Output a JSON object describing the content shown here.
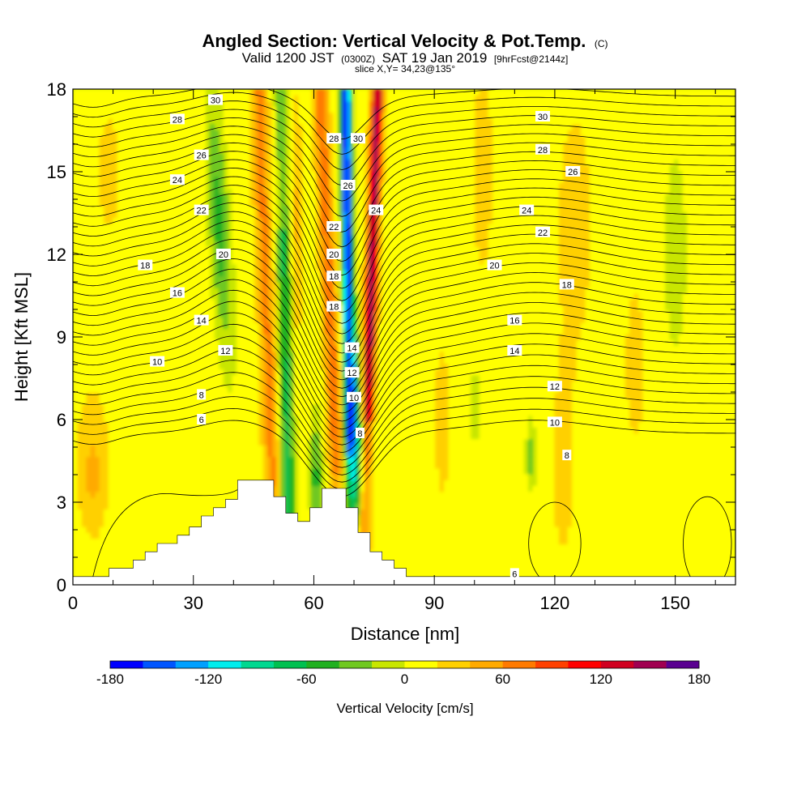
{
  "chart_data": {
    "type": "heatmap",
    "title": "Angled Section: Vertical Velocity & Pot.Temp.",
    "title_mark": "(C)",
    "subtitle": {
      "valid_label": "Valid 1200 JST",
      "utc": "(0300Z)",
      "date": "SAT 19 Jan 2019",
      "forecast": "[9hrFcst@2144z]"
    },
    "slice_label": "slice X,Y= 34,23@135°",
    "xlabel": "Distance [nm]",
    "ylabel": "Height [Kft MSL]",
    "xlim": [
      0,
      165
    ],
    "ylim": [
      0,
      18
    ],
    "xticks": [
      "0",
      "30",
      "60",
      "90",
      "120",
      "150"
    ],
    "yticks": [
      "0",
      "3",
      "6",
      "9",
      "12",
      "15",
      "18"
    ],
    "grid": false,
    "colorbar": {
      "label": "Vertical Velocity [cm/s]",
      "range": [
        -180,
        180
      ],
      "step": 20,
      "tick_labels": [
        "-180",
        "-120",
        "-60",
        "0",
        "60",
        "120",
        "180"
      ],
      "colors": [
        "#0000ff",
        "#0055ff",
        "#00a0ff",
        "#00eeee",
        "#00d890",
        "#00c050",
        "#20b020",
        "#70c820",
        "#c8e600",
        "#ffff00",
        "#ffd000",
        "#ffaa00",
        "#ff7a00",
        "#ff4000",
        "#ff0000",
        "#d00020",
        "#a00050",
        "#5a0090"
      ]
    },
    "contour_series_name": "Pot.Temp.",
    "contour_labels": [
      {
        "text": "30",
        "x": 35.5,
        "y": 17.6
      },
      {
        "text": "28",
        "x": 26,
        "y": 16.9
      },
      {
        "text": "26",
        "x": 32,
        "y": 15.6
      },
      {
        "text": "24",
        "x": 26,
        "y": 14.7
      },
      {
        "text": "22",
        "x": 32,
        "y": 13.6
      },
      {
        "text": "20",
        "x": 37.5,
        "y": 12.0
      },
      {
        "text": "18",
        "x": 18,
        "y": 11.6
      },
      {
        "text": "16",
        "x": 26,
        "y": 10.6
      },
      {
        "text": "14",
        "x": 32,
        "y": 9.6
      },
      {
        "text": "12",
        "x": 38,
        "y": 8.5
      },
      {
        "text": "10",
        "x": 21,
        "y": 8.1
      },
      {
        "text": "8",
        "x": 32,
        "y": 6.9
      },
      {
        "text": "6",
        "x": 32,
        "y": 6.0
      },
      {
        "text": "28",
        "x": 65,
        "y": 16.2
      },
      {
        "text": "30",
        "x": 71,
        "y": 16.2
      },
      {
        "text": "26",
        "x": 68.5,
        "y": 14.5
      },
      {
        "text": "24",
        "x": 75.5,
        "y": 13.6
      },
      {
        "text": "22",
        "x": 65,
        "y": 13.0
      },
      {
        "text": "20",
        "x": 65,
        "y": 12.0
      },
      {
        "text": "18",
        "x": 65,
        "y": 11.2
      },
      {
        "text": "18",
        "x": 65,
        "y": 10.1
      },
      {
        "text": "14",
        "x": 69.5,
        "y": 8.6
      },
      {
        "text": "12",
        "x": 69.5,
        "y": 7.7
      },
      {
        "text": "10",
        "x": 70,
        "y": 6.8
      },
      {
        "text": "8",
        "x": 71.5,
        "y": 5.5
      },
      {
        "text": "30",
        "x": 117,
        "y": 17.0
      },
      {
        "text": "28",
        "x": 117,
        "y": 15.8
      },
      {
        "text": "26",
        "x": 124.5,
        "y": 15.0
      },
      {
        "text": "24",
        "x": 113,
        "y": 13.6
      },
      {
        "text": "22",
        "x": 117,
        "y": 12.8
      },
      {
        "text": "20",
        "x": 105,
        "y": 11.6
      },
      {
        "text": "18",
        "x": 123,
        "y": 10.9
      },
      {
        "text": "16",
        "x": 110,
        "y": 9.6
      },
      {
        "text": "14",
        "x": 110,
        "y": 8.5
      },
      {
        "text": "12",
        "x": 120,
        "y": 7.2
      },
      {
        "text": "10",
        "x": 120,
        "y": 5.9
      },
      {
        "text": "8",
        "x": 123,
        "y": 4.7
      },
      {
        "text": "6",
        "x": 110,
        "y": 0.4
      }
    ]
  }
}
